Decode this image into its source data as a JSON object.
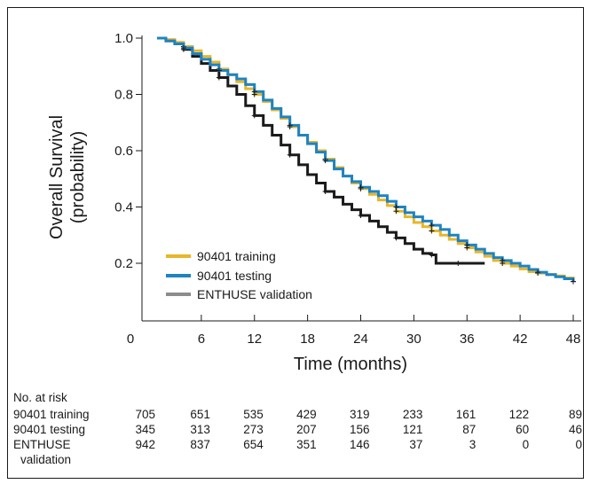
{
  "chart_data": {
    "type": "line",
    "title": "",
    "ylabel_line1": "Overall Survival",
    "ylabel_line2": "(probability)",
    "xlabel": "Time (months)",
    "xlim": [
      0,
      48
    ],
    "ylim": [
      0.0,
      1.0
    ],
    "xticks": [
      0,
      6,
      12,
      18,
      24,
      30,
      36,
      42,
      48
    ],
    "yticks": [
      1.0,
      0.8,
      0.6,
      0.4,
      0.2
    ],
    "ytick_labels": [
      "1.0",
      "0.8",
      "0.6",
      "0.4",
      "0.2"
    ],
    "grid": false,
    "legend_position": "bottom-left",
    "series": [
      {
        "name": "90401 training",
        "color": "#E8B62A",
        "x": [
          1,
          2,
          3,
          4,
          5,
          6,
          7,
          8,
          9,
          10,
          11,
          12,
          13,
          14,
          15,
          16,
          17,
          18,
          19,
          20,
          21,
          22,
          23,
          24,
          25,
          26,
          27,
          28,
          29,
          30,
          31,
          32,
          33,
          34,
          35,
          36,
          37,
          38,
          39,
          40,
          41,
          42,
          43,
          44,
          45,
          46,
          47,
          48
        ],
        "y": [
          1.0,
          0.995,
          0.985,
          0.97,
          0.955,
          0.935,
          0.915,
          0.89,
          0.87,
          0.845,
          0.82,
          0.8,
          0.775,
          0.745,
          0.715,
          0.685,
          0.655,
          0.63,
          0.6,
          0.57,
          0.54,
          0.51,
          0.485,
          0.465,
          0.445,
          0.425,
          0.405,
          0.385,
          0.365,
          0.345,
          0.33,
          0.315,
          0.3,
          0.285,
          0.27,
          0.255,
          0.24,
          0.225,
          0.21,
          0.2,
          0.19,
          0.18,
          0.17,
          0.165,
          0.16,
          0.155,
          0.148,
          0.135
        ]
      },
      {
        "name": "90401 testing",
        "color": "#1E83C2",
        "x": [
          1,
          2,
          3,
          4,
          5,
          6,
          7,
          8,
          9,
          10,
          11,
          12,
          13,
          14,
          15,
          16,
          17,
          18,
          19,
          20,
          21,
          22,
          23,
          24,
          25,
          26,
          27,
          28,
          29,
          30,
          31,
          32,
          33,
          34,
          35,
          36,
          37,
          38,
          39,
          40,
          41,
          42,
          43,
          44,
          45,
          46,
          47,
          48
        ],
        "y": [
          1.0,
          0.99,
          0.98,
          0.965,
          0.945,
          0.925,
          0.905,
          0.885,
          0.87,
          0.855,
          0.835,
          0.81,
          0.78,
          0.75,
          0.72,
          0.69,
          0.655,
          0.625,
          0.595,
          0.565,
          0.535,
          0.51,
          0.49,
          0.47,
          0.455,
          0.44,
          0.42,
          0.4,
          0.38,
          0.365,
          0.35,
          0.335,
          0.32,
          0.3,
          0.28,
          0.265,
          0.25,
          0.235,
          0.22,
          0.21,
          0.2,
          0.19,
          0.178,
          0.168,
          0.16,
          0.152,
          0.145,
          0.135
        ]
      },
      {
        "name": "ENTHUSE validation",
        "color": "#1A1A1A",
        "x": [
          1,
          2,
          3,
          4,
          5,
          6,
          7,
          8,
          9,
          10,
          11,
          12,
          13,
          14,
          15,
          16,
          17,
          18,
          19,
          20,
          21,
          22,
          23,
          24,
          25,
          26,
          27,
          28,
          29,
          30,
          31,
          32,
          32.5,
          33,
          34,
          35,
          36,
          37,
          38
        ],
        "y": [
          1.0,
          0.99,
          0.98,
          0.96,
          0.935,
          0.91,
          0.885,
          0.86,
          0.83,
          0.8,
          0.76,
          0.725,
          0.69,
          0.655,
          0.62,
          0.585,
          0.55,
          0.515,
          0.485,
          0.455,
          0.435,
          0.41,
          0.39,
          0.37,
          0.35,
          0.33,
          0.31,
          0.29,
          0.27,
          0.25,
          0.235,
          0.23,
          0.2,
          0.2,
          0.2,
          0.2,
          0.2,
          0.2,
          0.2
        ]
      }
    ],
    "at_risk": {
      "heading": "No. at risk",
      "times": [
        0,
        6,
        12,
        18,
        24,
        30,
        36,
        42,
        48
      ],
      "rows": [
        {
          "label": "90401 training",
          "values": [
            "705",
            "651",
            "535",
            "429",
            "319",
            "233",
            "161",
            "122",
            "89"
          ]
        },
        {
          "label": "90401 testing",
          "values": [
            "345",
            "313",
            "273",
            "207",
            "156",
            "121",
            "87",
            "60",
            "46"
          ]
        },
        {
          "label": "ENTHUSE",
          "label2": "validation",
          "values": [
            "942",
            "837",
            "654",
            "351",
            "146",
            "37",
            "3",
            "0",
            "0"
          ]
        }
      ]
    }
  },
  "legend_swatch_colors": [
    "#E8B62A",
    "#1E83C2",
    "#8C8C8C"
  ]
}
